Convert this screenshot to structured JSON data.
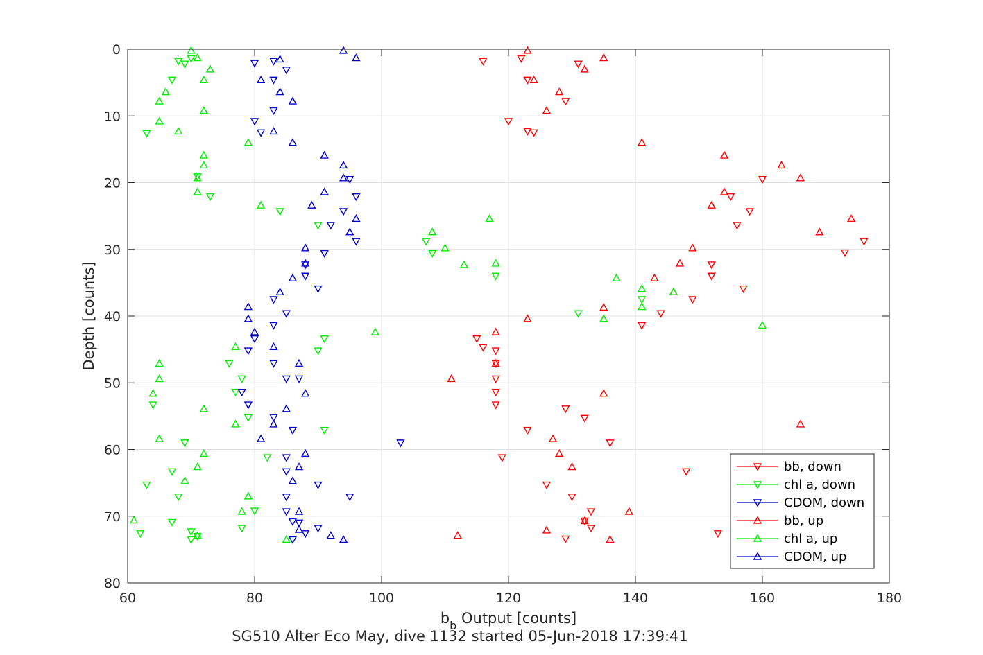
{
  "chart_data": {
    "type": "scatter",
    "title": "SG510 Alter Eco May, dive 1132 started 05-Jun-2018 17:39:41",
    "xlabel": {
      "main": "b",
      "sub": "b",
      "rest": " Output [counts]"
    },
    "ylabel": "Depth [counts]",
    "xlim": [
      60,
      180
    ],
    "ylim": [
      0,
      80
    ],
    "y_reversed": true,
    "x_ticks": [
      60,
      80,
      100,
      120,
      140,
      160,
      180
    ],
    "y_ticks": [
      0,
      10,
      20,
      30,
      40,
      50,
      60,
      70,
      80
    ],
    "grid": true,
    "legend_position": "bottom-right",
    "series": [
      {
        "name": "bb, down",
        "color": "#ff0000",
        "marker": "triangle-down",
        "points": [
          [
            116,
            1.8
          ],
          [
            122,
            1.4
          ],
          [
            123,
            4.6
          ],
          [
            131,
            2.2
          ],
          [
            120,
            10.8
          ],
          [
            123,
            12.3
          ],
          [
            124,
            12.5
          ],
          [
            129,
            7.8
          ],
          [
            160,
            19.5
          ],
          [
            155,
            22.1
          ],
          [
            156,
            26.4
          ],
          [
            158,
            24.3
          ],
          [
            173,
            30.5
          ],
          [
            176,
            28.8
          ],
          [
            152,
            32.3
          ],
          [
            152,
            34
          ],
          [
            157,
            35.9
          ],
          [
            149,
            37.5
          ],
          [
            144,
            39.6
          ],
          [
            141,
            41.4
          ],
          [
            115,
            43.4
          ],
          [
            116,
            44.7
          ],
          [
            118,
            45.2
          ],
          [
            118,
            47.1
          ],
          [
            118,
            49.4
          ],
          [
            118,
            51.4
          ],
          [
            118,
            53.3
          ],
          [
            129,
            53.9
          ],
          [
            132,
            55.3
          ],
          [
            123,
            57.1
          ],
          [
            136,
            59
          ],
          [
            119,
            61.2
          ],
          [
            148,
            63.3
          ],
          [
            126,
            65.3
          ],
          [
            130,
            67.1
          ],
          [
            133,
            69.3
          ],
          [
            132,
            70.7
          ],
          [
            133,
            71.8
          ],
          [
            129,
            73.4
          ],
          [
            153,
            72.6
          ]
        ]
      },
      {
        "name": "chl a, down",
        "color": "#00ee00",
        "marker": "triangle-down",
        "points": [
          [
            70,
            1.4
          ],
          [
            68,
            1.8
          ],
          [
            69,
            2.2
          ],
          [
            67,
            4.6
          ],
          [
            63,
            12.6
          ],
          [
            71,
            19.1
          ],
          [
            73,
            22.1
          ],
          [
            84,
            24.3
          ],
          [
            90,
            26.4
          ],
          [
            107,
            28.8
          ],
          [
            108,
            30.6
          ],
          [
            118,
            34
          ],
          [
            141,
            37.5
          ],
          [
            131,
            39.6
          ],
          [
            91,
            43.4
          ],
          [
            90,
            45.2
          ],
          [
            76,
            47.1
          ],
          [
            78,
            49.4
          ],
          [
            77,
            51.4
          ],
          [
            64,
            53.3
          ],
          [
            79,
            55.2
          ],
          [
            91,
            57.1
          ],
          [
            69,
            59
          ],
          [
            82,
            61.2
          ],
          [
            67,
            63.3
          ],
          [
            63,
            65.3
          ],
          [
            68,
            67.1
          ],
          [
            80,
            69.2
          ],
          [
            78,
            71.8
          ],
          [
            67,
            70.9
          ],
          [
            70,
            72.3
          ],
          [
            62,
            72.6
          ],
          [
            70,
            73.5
          ],
          [
            71,
            73
          ]
        ]
      },
      {
        "name": "CDOM, down",
        "color": "#0000cc",
        "marker": "triangle-down",
        "points": [
          [
            80,
            2.1
          ],
          [
            83,
            1.8
          ],
          [
            85,
            3.1
          ],
          [
            83,
            4.6
          ],
          [
            83,
            9.2
          ],
          [
            80,
            10.8
          ],
          [
            81,
            12.5
          ],
          [
            95,
            19.5
          ],
          [
            96,
            22.1
          ],
          [
            94,
            24.3
          ],
          [
            92,
            26.4
          ],
          [
            96,
            28.8
          ],
          [
            91,
            30.6
          ],
          [
            88,
            32.3
          ],
          [
            88,
            34
          ],
          [
            90,
            35.9
          ],
          [
            83,
            37.5
          ],
          [
            85,
            39.6
          ],
          [
            83,
            41.4
          ],
          [
            80,
            43.4
          ],
          [
            79,
            45.2
          ],
          [
            83,
            47.1
          ],
          [
            85,
            49.4
          ],
          [
            87,
            49.4
          ],
          [
            78,
            51.4
          ],
          [
            79,
            53.3
          ],
          [
            83,
            55.2
          ],
          [
            86,
            57.1
          ],
          [
            103,
            59
          ],
          [
            85,
            61.2
          ],
          [
            85,
            63.3
          ],
          [
            90,
            65.3
          ],
          [
            85,
            67.1
          ],
          [
            95,
            67.1
          ],
          [
            85,
            69.3
          ],
          [
            87,
            71
          ],
          [
            86,
            70.8
          ],
          [
            90,
            71.8
          ],
          [
            88,
            72.6
          ],
          [
            86,
            73.5
          ]
        ]
      },
      {
        "name": "bb, up",
        "color": "#ff0000",
        "marker": "triangle-up",
        "points": [
          [
            123,
            0.2
          ],
          [
            135,
            1.3
          ],
          [
            132,
            3
          ],
          [
            124,
            4.6
          ],
          [
            128,
            6.4
          ],
          [
            126,
            9.2
          ],
          [
            141,
            14
          ],
          [
            154,
            15.9
          ],
          [
            163,
            17.4
          ],
          [
            166,
            19.3
          ],
          [
            154,
            21.4
          ],
          [
            152,
            23.4
          ],
          [
            174,
            25.4
          ],
          [
            169,
            27.4
          ],
          [
            149,
            29.8
          ],
          [
            147,
            32.1
          ],
          [
            143,
            34.3
          ],
          [
            146,
            36.4
          ],
          [
            135,
            38.7
          ],
          [
            123,
            40.4
          ],
          [
            118,
            42.4
          ],
          [
            118,
            47.1
          ],
          [
            111,
            49.4
          ],
          [
            135,
            51.6
          ],
          [
            166,
            56.2
          ],
          [
            127,
            58.4
          ],
          [
            128,
            60.6
          ],
          [
            130,
            62.6
          ],
          [
            139,
            69.3
          ],
          [
            132,
            70.7
          ],
          [
            126,
            72.1
          ],
          [
            112,
            72.9
          ],
          [
            136,
            73.5
          ]
        ]
      },
      {
        "name": "chl a, up",
        "color": "#00ee00",
        "marker": "triangle-up",
        "points": [
          [
            70,
            0.2
          ],
          [
            71,
            1.3
          ],
          [
            73,
            3
          ],
          [
            72,
            4.6
          ],
          [
            66,
            6.4
          ],
          [
            65,
            7.8
          ],
          [
            72,
            9.2
          ],
          [
            65,
            10.8
          ],
          [
            68,
            12.3
          ],
          [
            79,
            14
          ],
          [
            72,
            15.9
          ],
          [
            72,
            17.4
          ],
          [
            71,
            19.3
          ],
          [
            71,
            21.4
          ],
          [
            81,
            23.4
          ],
          [
            117,
            25.4
          ],
          [
            108,
            27.4
          ],
          [
            110,
            29.8
          ],
          [
            113,
            32.3
          ],
          [
            118,
            32.1
          ],
          [
            137,
            34.3
          ],
          [
            141,
            35.9
          ],
          [
            146,
            36.4
          ],
          [
            141,
            38.6
          ],
          [
            135,
            40.4
          ],
          [
            160,
            41.4
          ],
          [
            99,
            42.4
          ],
          [
            77,
            44.6
          ],
          [
            65,
            47.1
          ],
          [
            65,
            49.4
          ],
          [
            64,
            51.6
          ],
          [
            72,
            53.9
          ],
          [
            77,
            56.2
          ],
          [
            65,
            58.4
          ],
          [
            72,
            60.6
          ],
          [
            71,
            62.6
          ],
          [
            69,
            64.7
          ],
          [
            79,
            67
          ],
          [
            78,
            69.3
          ],
          [
            61,
            70.6
          ],
          [
            71,
            72.9
          ],
          [
            85,
            73.5
          ]
        ]
      },
      {
        "name": "CDOM, up",
        "color": "#0000cc",
        "marker": "triangle-up",
        "points": [
          [
            94,
            0.2
          ],
          [
            96,
            1.3
          ],
          [
            84,
            1.5
          ],
          [
            81,
            4.6
          ],
          [
            84,
            6.4
          ],
          [
            86,
            7.8
          ],
          [
            83,
            12.3
          ],
          [
            86,
            14
          ],
          [
            91,
            15.9
          ],
          [
            94,
            17.4
          ],
          [
            94,
            19.3
          ],
          [
            91,
            21.4
          ],
          [
            89,
            23.4
          ],
          [
            96,
            25.4
          ],
          [
            95,
            27.4
          ],
          [
            88,
            29.8
          ],
          [
            88,
            32.1
          ],
          [
            86,
            34.3
          ],
          [
            84,
            36.4
          ],
          [
            79,
            38.6
          ],
          [
            79,
            40.4
          ],
          [
            80,
            42.4
          ],
          [
            83,
            44.6
          ],
          [
            87,
            47.1
          ],
          [
            88,
            51.6
          ],
          [
            85,
            53.9
          ],
          [
            83,
            56.2
          ],
          [
            81,
            58.4
          ],
          [
            88,
            60.6
          ],
          [
            87,
            62.6
          ],
          [
            86,
            64.7
          ],
          [
            87,
            69.3
          ],
          [
            87,
            72
          ],
          [
            92,
            72.9
          ],
          [
            94,
            73.5
          ]
        ]
      }
    ]
  }
}
